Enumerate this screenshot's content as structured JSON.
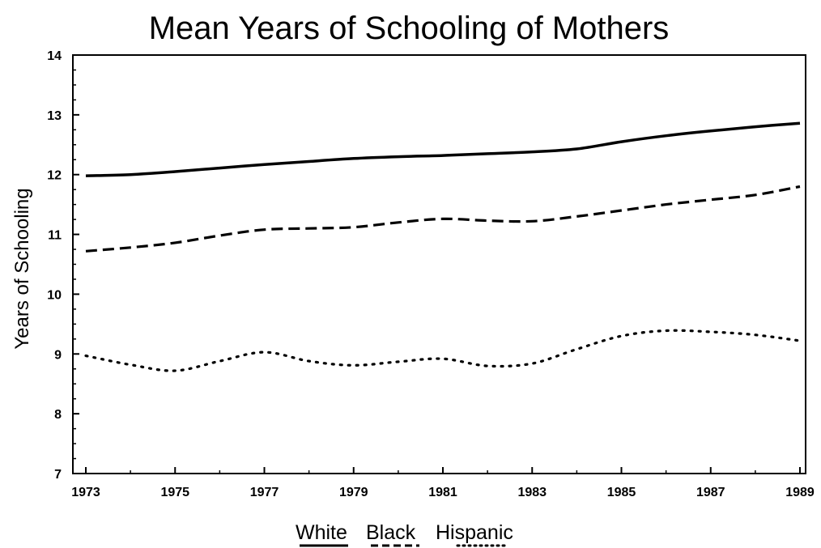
{
  "chart_data": {
    "type": "line",
    "title": "Mean Years of Schooling of Mothers",
    "xlabel": "",
    "ylabel": "Years of Schooling",
    "x": [
      1973,
      1974,
      1975,
      1976,
      1977,
      1978,
      1979,
      1980,
      1981,
      1982,
      1983,
      1984,
      1985,
      1986,
      1987,
      1988,
      1989
    ],
    "x_ticks": [
      "1973",
      "1975",
      "1977",
      "1979",
      "1981",
      "1983",
      "1985",
      "1987",
      "1989"
    ],
    "y_ticks": [
      "7",
      "8",
      "9",
      "10",
      "11",
      "12",
      "13",
      "14"
    ],
    "xlim": [
      1973,
      1989
    ],
    "ylim": [
      7,
      14
    ],
    "grid": false,
    "legend_position": "bottom",
    "series": [
      {
        "name": "White",
        "style": "solid",
        "values": [
          11.98,
          12.0,
          12.05,
          12.11,
          12.17,
          12.22,
          12.27,
          12.3,
          12.32,
          12.35,
          12.38,
          12.43,
          12.55,
          12.65,
          12.73,
          12.8,
          12.86
        ]
      },
      {
        "name": "Black",
        "style": "dashed",
        "values": [
          10.72,
          10.78,
          10.86,
          10.98,
          11.08,
          11.1,
          11.12,
          11.2,
          11.26,
          11.23,
          11.22,
          11.3,
          11.4,
          11.5,
          11.58,
          11.66,
          11.8
        ]
      },
      {
        "name": "Hispanic",
        "style": "dotted",
        "values": [
          8.97,
          8.82,
          8.72,
          8.88,
          9.03,
          8.88,
          8.81,
          8.87,
          8.92,
          8.8,
          8.84,
          9.08,
          9.3,
          9.39,
          9.37,
          9.32,
          9.22
        ]
      }
    ],
    "legend": {
      "white": "White",
      "black": "Black",
      "hispanic": "Hispanic"
    }
  }
}
